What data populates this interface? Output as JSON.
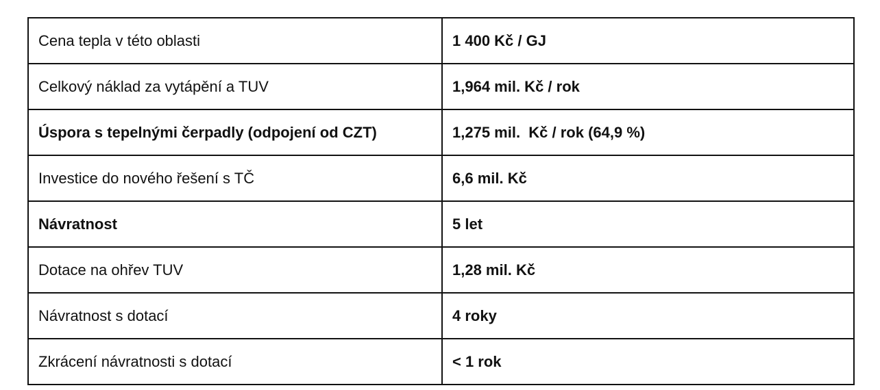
{
  "rows": [
    {
      "label": "Cena tepla v této oblasti",
      "value": "1 400 Kč / GJ",
      "label_bold": false
    },
    {
      "label": "Celkový náklad za vytápění a TUV",
      "value": "1,964 mil. Kč / rok",
      "label_bold": false
    },
    {
      "label": "Úspora s tepelnými čerpadly (odpojení od CZT)",
      "value": "1,275 mil.  Kč / rok (64,9 %)",
      "label_bold": true
    },
    {
      "label": "Investice do nového řešení s TČ",
      "value": "6,6 mil. Kč",
      "label_bold": false
    },
    {
      "label": "Návratnost",
      "value": "5 let",
      "label_bold": true
    },
    {
      "label": "Dotace na ohřev TUV",
      "value": "1,28 mil. Kč",
      "label_bold": false
    },
    {
      "label": "Návratnost s dotací",
      "value": "4 roky",
      "label_bold": false
    },
    {
      "label": "Zkrácení návratnosti s dotací",
      "value": "< 1 rok",
      "label_bold": false
    }
  ]
}
